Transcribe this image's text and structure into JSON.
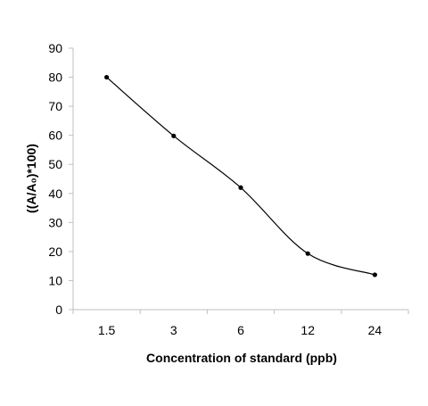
{
  "chart_data": {
    "type": "line",
    "title": "",
    "xlabel": "Concentration of standard (ppb)",
    "ylabel": "((A/A₀)*100)",
    "categories": [
      "1.5",
      "3",
      "6",
      "12",
      "24"
    ],
    "series": [
      {
        "values": [
          80,
          59.8,
          42,
          19.3,
          12
        ]
      }
    ],
    "ylim": [
      0,
      90
    ],
    "yticks": [
      0,
      10,
      20,
      30,
      40,
      50,
      60,
      70,
      80,
      90
    ],
    "grid": false,
    "legend": "none",
    "smooth": true,
    "line_color": "#000000",
    "marker_color": "#000000",
    "axis_color": "#bfbfbf"
  }
}
